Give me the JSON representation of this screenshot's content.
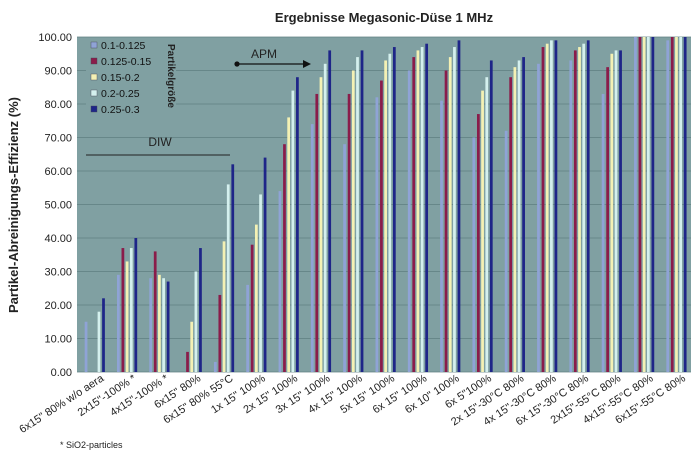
{
  "chart_data": {
    "type": "bar",
    "title": "Ergebnisse Megasonic-Düse 1 MHz",
    "ylabel": "Partikel-Abreinigungs-Effizienz (%)",
    "xlabel": "",
    "ylim": [
      0,
      100
    ],
    "yticks": [
      "0.00",
      "10.00",
      "20.00",
      "30.00",
      "40.00",
      "50.00",
      "60.00",
      "70.00",
      "80.00",
      "90.00",
      "100.00"
    ],
    "legend_title": "Partikelgröße",
    "legend_position": "top-left",
    "grid": "horizontal",
    "categories": [
      "6x15\" 80% w/o aera",
      "2x15\"-100% *",
      "4x15\"-100% *",
      "6x15\" 80%",
      "6x15\" 80% 55°C",
      "1x 15\" 100%",
      "2x 15\" 100%",
      "3x 15\" 100%",
      "4x 15\" 100%",
      "5x 15\" 100%",
      "6x 15\" 100%",
      "6x 10\" 100%",
      "6x 5\"100%",
      "2x 15\"-30°C 80%",
      "4x 15\"-30°C 80%",
      "6x 15\"-30°C 80%",
      "2x15\"-55°C 80%",
      "4x15\"-55°C 80%",
      "6x15\"-55°C 80%"
    ],
    "series": [
      {
        "name": "0.1-0.125",
        "color": "#8fa3d6",
        "values": [
          15,
          29,
          28,
          0,
          3,
          26,
          54,
          74,
          68,
          82,
          90,
          81,
          70,
          72,
          92,
          93,
          83,
          100,
          99
        ]
      },
      {
        "name": "0.125-0.15",
        "color": "#8a1c4a",
        "values": [
          0,
          37,
          36,
          6,
          23,
          38,
          68,
          83,
          83,
          87,
          94,
          90,
          77,
          88,
          97,
          96,
          91,
          100,
          100
        ]
      },
      {
        "name": "0.15-0.2",
        "color": "#f4f1b4",
        "values": [
          0,
          33,
          29,
          15,
          39,
          44,
          76,
          88,
          90,
          93,
          96,
          94,
          84,
          91,
          98,
          97,
          95,
          100,
          100
        ]
      },
      {
        "name": "0.2-0.25",
        "color": "#d4f0ee",
        "values": [
          18,
          37,
          28,
          30,
          56,
          53,
          84,
          92,
          94,
          95,
          97,
          97,
          88,
          93,
          99,
          98,
          96,
          100,
          100
        ]
      },
      {
        "name": "0.25-0.3",
        "color": "#1e2588",
        "values": [
          22,
          40,
          27,
          37,
          62,
          64,
          88,
          96,
          96,
          97,
          98,
          99,
          93,
          94,
          99,
          99,
          96,
          100,
          100
        ]
      }
    ],
    "annotations": {
      "diw_label": "DIW",
      "apm_label": "APM",
      "footnote": "* SiO2-particles"
    }
  }
}
